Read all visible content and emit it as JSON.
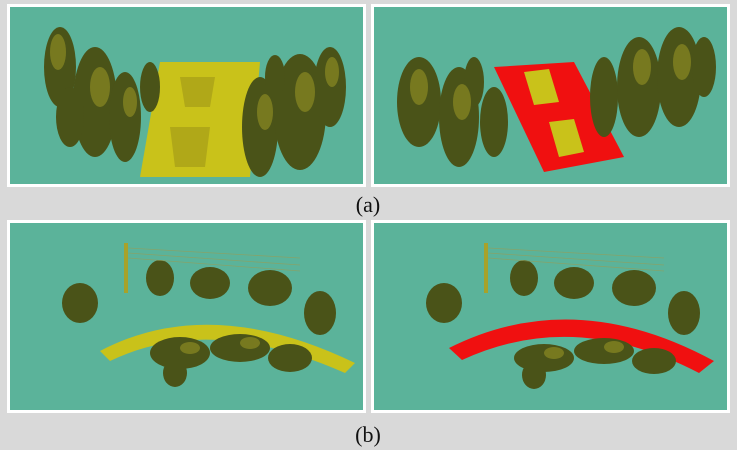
{
  "figure": {
    "captions": {
      "a": "(a)",
      "b": "(b)"
    },
    "colors": {
      "background": "#d9d9d9",
      "panel_bg": "#5bb39a",
      "panel_border": "#ffffff",
      "road_original": "#c9c21a",
      "road_segmented": "#f01010",
      "vegetation_dark": "#3f4a16",
      "vegetation_mid": "#6e7420",
      "vegetation_light": "#a7a22a"
    },
    "panels": [
      {
        "id": "a-left",
        "description_icon": "point-cloud-straight-road"
      },
      {
        "id": "a-right",
        "description_icon": "point-cloud-straight-road-segmented"
      },
      {
        "id": "b-left",
        "description_icon": "point-cloud-curved-road"
      },
      {
        "id": "b-right",
        "description_icon": "point-cloud-curved-road-segmented"
      }
    ]
  }
}
